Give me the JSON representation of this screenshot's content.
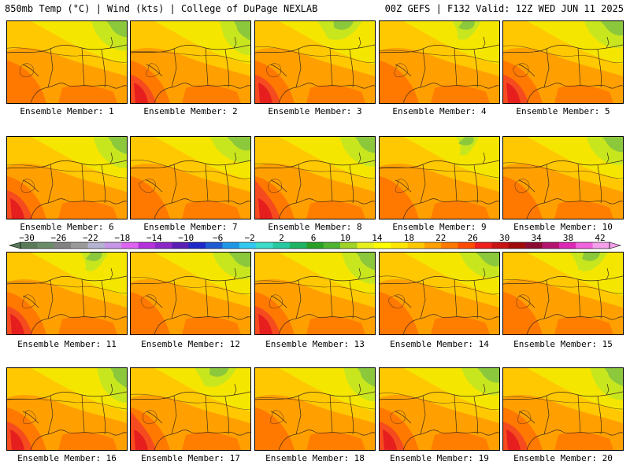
{
  "header": {
    "left_title": "850mb Temp (°C) | Wind (kts) | College of DuPage NEXLAB",
    "right_title": "00Z GEFS | F132 Valid: 12Z WED JUN 11 2025"
  },
  "members": [
    {
      "label": "Ensemble Member: 1",
      "member": 1,
      "heat": "moderate",
      "cool_patch": "northeast"
    },
    {
      "label": "Ensemble Member: 2",
      "member": 2,
      "heat": "strong",
      "cool_patch": "northeast"
    },
    {
      "label": "Ensemble Member: 3",
      "member": 3,
      "heat": "strong",
      "cool_patch": "north"
    },
    {
      "label": "Ensemble Member: 4",
      "member": 4,
      "heat": "moderate",
      "cool_patch": "north"
    },
    {
      "label": "Ensemble Member: 5",
      "member": 5,
      "heat": "strong",
      "cool_patch": "northeast"
    },
    {
      "label": "Ensemble Member: 6",
      "member": 6,
      "heat": "strong",
      "cool_patch": "northeast"
    },
    {
      "label": "Ensemble Member: 7",
      "member": 7,
      "heat": "moderate",
      "cool_patch": "northeast"
    },
    {
      "label": "Ensemble Member: 8",
      "member": 8,
      "heat": "very strong",
      "cool_patch": "northeast"
    },
    {
      "label": "Ensemble Member: 9",
      "member": 9,
      "heat": "moderate",
      "cool_patch": "north"
    },
    {
      "label": "Ensemble Member: 10",
      "member": 10,
      "heat": "moderate",
      "cool_patch": "northeast"
    },
    {
      "label": "Ensemble Member: 11",
      "member": 11,
      "heat": "strong",
      "cool_patch": "north"
    },
    {
      "label": "Ensemble Member: 12",
      "member": 12,
      "heat": "moderate",
      "cool_patch": "northeast"
    },
    {
      "label": "Ensemble Member: 13",
      "member": 13,
      "heat": "strong",
      "cool_patch": "northeast"
    },
    {
      "label": "Ensemble Member: 14",
      "member": 14,
      "heat": "moderate",
      "cool_patch": "northeast"
    },
    {
      "label": "Ensemble Member: 15",
      "member": 15,
      "heat": "moderate",
      "cool_patch": "north"
    },
    {
      "label": "Ensemble Member: 16",
      "member": 16,
      "heat": "strong",
      "cool_patch": "northeast"
    },
    {
      "label": "Ensemble Member: 17",
      "member": 17,
      "heat": "very strong",
      "cool_patch": "north"
    },
    {
      "label": "Ensemble Member: 18",
      "member": 18,
      "heat": "moderate",
      "cool_patch": "northeast"
    },
    {
      "label": "Ensemble Member: 19",
      "member": 19,
      "heat": "strong",
      "cool_patch": "northeast"
    },
    {
      "label": "Ensemble Member: 20",
      "member": 20,
      "heat": "strong",
      "cool_patch": "northeast"
    }
  ],
  "colorbar": {
    "unit": "°C",
    "labels": [
      "-30",
      "-26",
      "-22",
      "-18",
      "-14",
      "-10",
      "-6",
      "-2",
      "2",
      "6",
      "10",
      "14",
      "18",
      "22",
      "26",
      "30",
      "34",
      "38",
      "42"
    ],
    "colors": [
      "#5a7a5a",
      "#6b8c6b",
      "#828282",
      "#9a9a9a",
      "#b4b4d2",
      "#c896e6",
      "#dc64f0",
      "#b432dc",
      "#8c28c8",
      "#5a1eb4",
      "#1e28c8",
      "#1e5ad2",
      "#1e96e6",
      "#32c8f0",
      "#3cdcc8",
      "#28c8a0",
      "#1eb464",
      "#28a028",
      "#50b432",
      "#a0d228",
      "#e6f01e",
      "#ffff00",
      "#ffe600",
      "#ffc800",
      "#ffa000",
      "#ff7800",
      "#ff4b00",
      "#f01e1e",
      "#c81414",
      "#a00a0a",
      "#8c0a32",
      "#b4146e",
      "#dc28b4",
      "#f064dc",
      "#f5a0eb"
    ]
  },
  "field_colors": {
    "cool_green": "#8cc83c",
    "light_green": "#c8e61e",
    "yellow": "#f5e600",
    "light_orange": "#ffc800",
    "orange": "#ffa000",
    "dark_orange": "#ff7800",
    "red_orange": "#f54b1e",
    "red": "#e61e1e"
  }
}
